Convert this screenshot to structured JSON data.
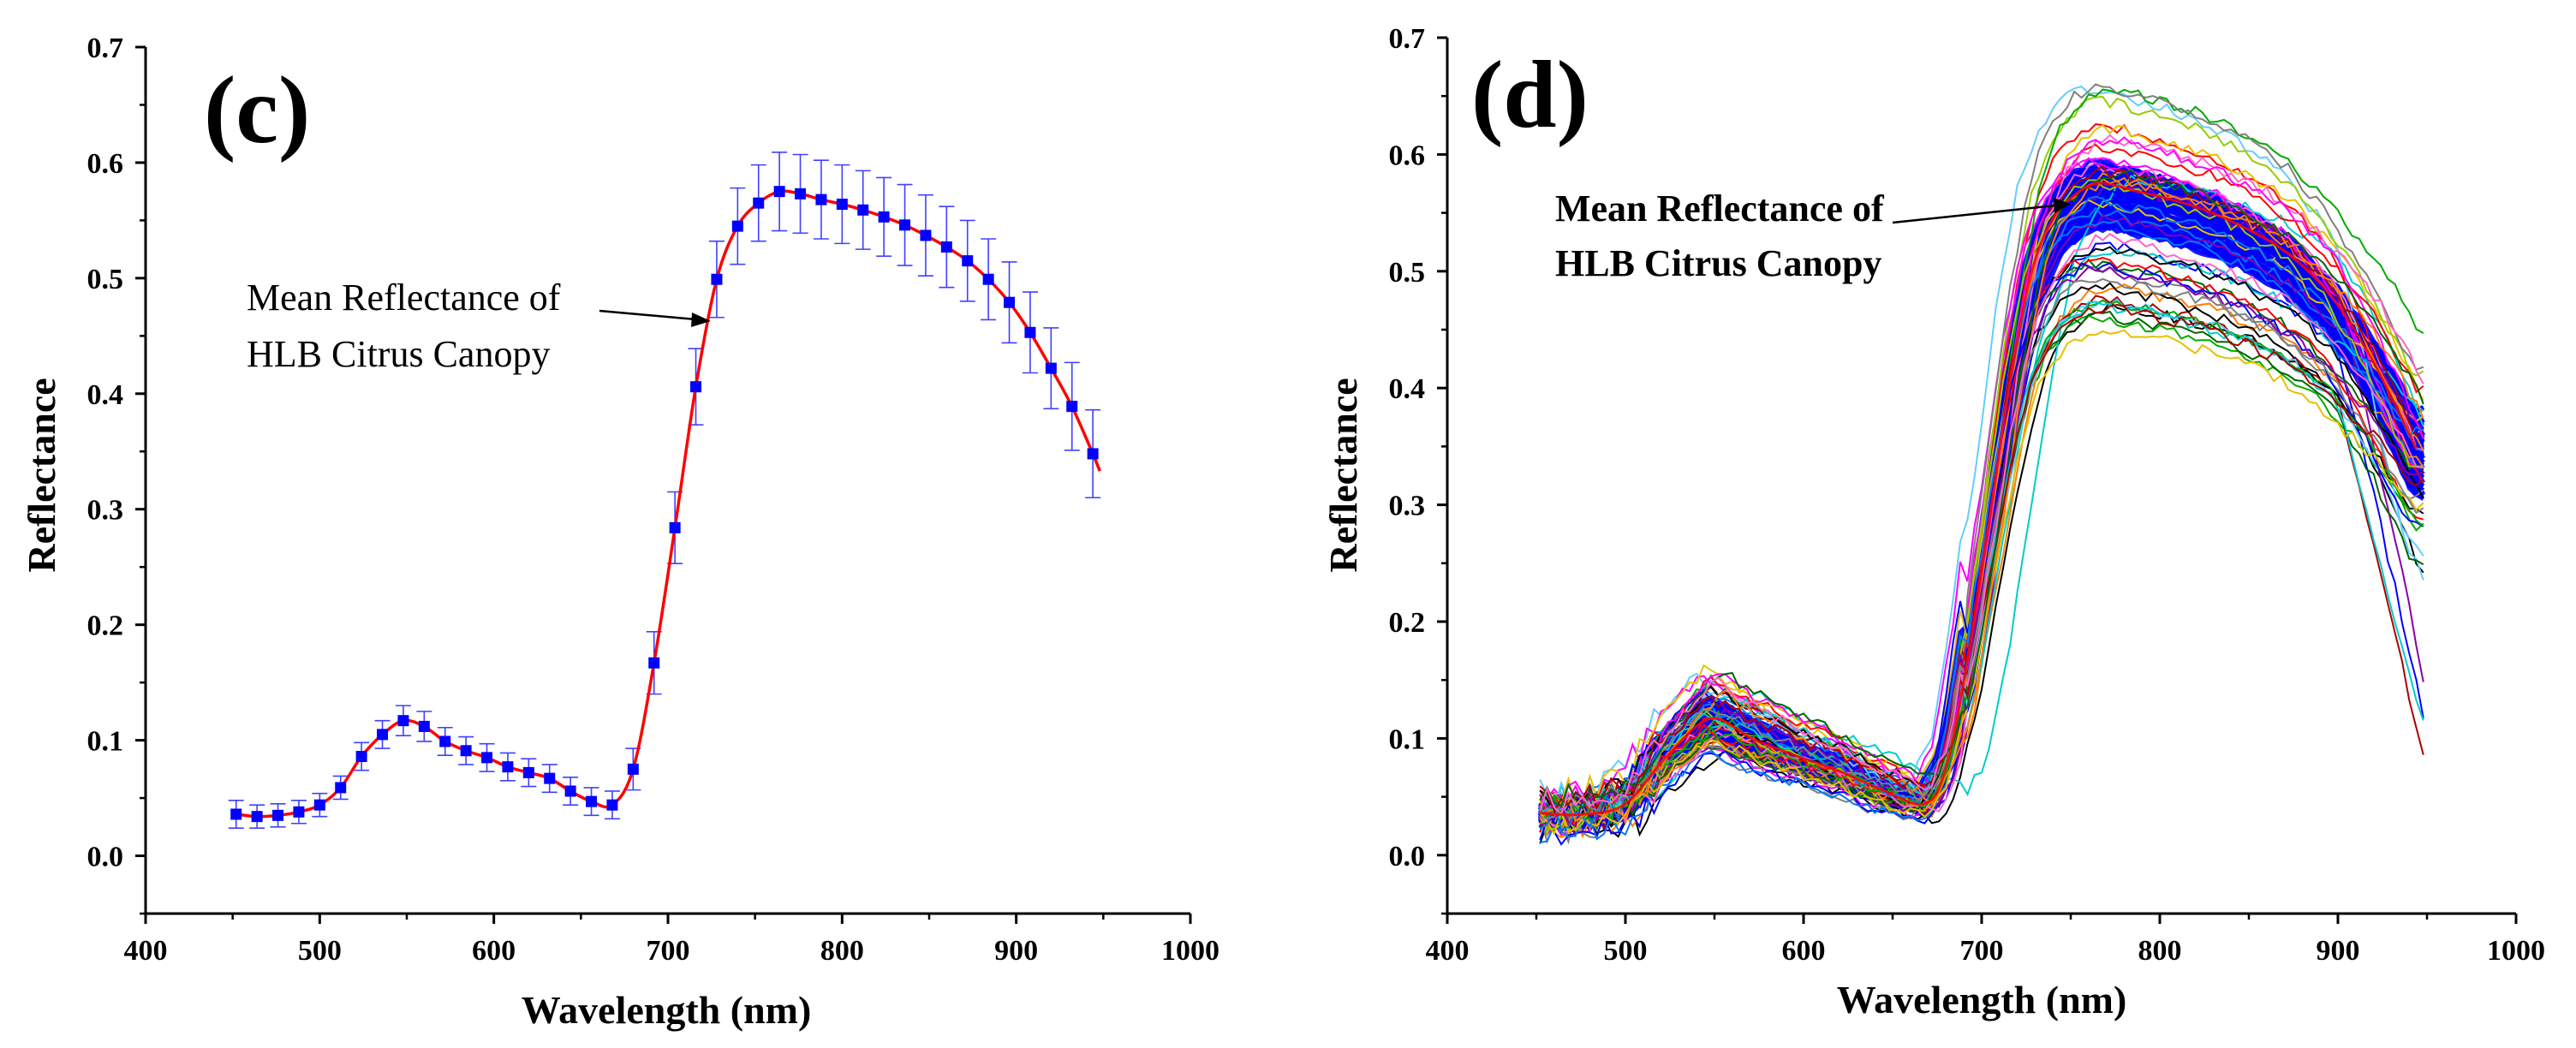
{
  "colors": {
    "mean_line": "#ff0000",
    "marker": "#0000ff",
    "errorbar": "#4040ff",
    "band": "#0000ff"
  },
  "chart_data": [
    {
      "type": "line",
      "panel_label": "(c)",
      "xlabel": "Wavelength (nm)",
      "ylabel": "Reflectance",
      "xlim": [
        400,
        1000
      ],
      "ylim": [
        -0.05,
        0.7
      ],
      "xticks": [
        "400",
        "500",
        "600",
        "700",
        "800",
        "900",
        "1000"
      ],
      "yticks": [
        "0.0",
        "0.1",
        "0.2",
        "0.3",
        "0.4",
        "0.5",
        "0.6",
        "0.7"
      ],
      "annotation": [
        "Mean Reflectance of",
        "HLB Citrus Canopy"
      ],
      "annotation_target": [
        728,
        0.465
      ],
      "series": [
        {
          "name": "Mean Reflectance of HLB Citrus Canopy",
          "x": [
            452,
            464,
            476,
            488,
            500,
            512,
            524,
            536,
            548,
            560,
            572,
            584,
            596,
            608,
            620,
            632,
            644,
            656,
            668,
            680,
            692,
            704,
            716,
            728,
            740,
            752,
            764,
            776,
            788,
            800,
            812,
            824,
            836,
            848,
            860,
            872,
            884,
            896,
            908,
            920,
            932,
            944
          ],
          "values": [
            0.036,
            0.034,
            0.035,
            0.038,
            0.044,
            0.059,
            0.086,
            0.105,
            0.117,
            0.112,
            0.099,
            0.091,
            0.085,
            0.077,
            0.072,
            0.067,
            0.056,
            0.047,
            0.044,
            0.075,
            0.167,
            0.284,
            0.406,
            0.499,
            0.545,
            0.565,
            0.575,
            0.573,
            0.568,
            0.564,
            0.559,
            0.553,
            0.546,
            0.537,
            0.527,
            0.515,
            0.499,
            0.479,
            0.453,
            0.422,
            0.389,
            0.348
          ],
          "errors": [
            0.012,
            0.01,
            0.01,
            0.01,
            0.01,
            0.01,
            0.012,
            0.012,
            0.013,
            0.013,
            0.012,
            0.012,
            0.012,
            0.012,
            0.012,
            0.012,
            0.012,
            0.012,
            0.012,
            0.018,
            0.027,
            0.031,
            0.033,
            0.033,
            0.033,
            0.033,
            0.034,
            0.034,
            0.034,
            0.034,
            0.034,
            0.034,
            0.035,
            0.035,
            0.035,
            0.035,
            0.035,
            0.035,
            0.035,
            0.035,
            0.038,
            0.038
          ]
        }
      ]
    },
    {
      "type": "line",
      "panel_label": "(d)",
      "xlabel": "Wavelength (nm)",
      "ylabel": "Reflectance",
      "xlim": [
        400,
        1000
      ],
      "ylim": [
        -0.05,
        0.7
      ],
      "xticks": [
        "400",
        "500",
        "600",
        "700",
        "800",
        "900",
        "1000"
      ],
      "yticks": [
        "0.0",
        "0.1",
        "0.2",
        "0.3",
        "0.4",
        "0.5",
        "0.6",
        "0.7"
      ],
      "annotation": [
        "Mean Reflectance of",
        "HLB Citrus Canopy"
      ],
      "annotation_target": [
        750,
        0.555
      ],
      "description": "Many individual canopy reflectance spectra (450-950 nm) overlaid in assorted colors, dense blue band around the mean",
      "series": [
        {
          "name": "Mean Reflectance of HLB Citrus Canopy",
          "x": [
            452,
            476,
            500,
            524,
            548,
            572,
            596,
            620,
            644,
            668,
            680,
            692,
            704,
            716,
            728,
            740,
            752,
            764,
            776,
            788,
            800,
            824,
            848,
            872,
            896,
            920,
            944
          ],
          "values": [
            0.036,
            0.035,
            0.044,
            0.086,
            0.117,
            0.099,
            0.085,
            0.072,
            0.056,
            0.044,
            0.075,
            0.167,
            0.284,
            0.406,
            0.499,
            0.545,
            0.565,
            0.575,
            0.573,
            0.568,
            0.564,
            0.553,
            0.537,
            0.515,
            0.479,
            0.422,
            0.348
          ]
        }
      ]
    }
  ]
}
